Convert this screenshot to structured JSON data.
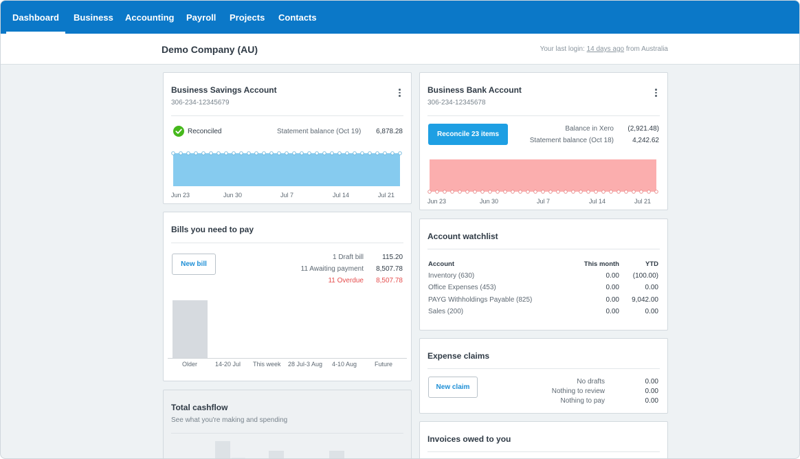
{
  "nav": {
    "items": [
      {
        "label": "Dashboard",
        "active": true
      },
      {
        "label": "Business"
      },
      {
        "label": "Accounting"
      },
      {
        "label": "Payroll"
      },
      {
        "label": "Projects"
      },
      {
        "label": "Contacts"
      }
    ]
  },
  "header": {
    "company": "Demo Company (AU)",
    "last_login_prefix": "Your last login: ",
    "last_login_link": "14 days ago",
    "last_login_suffix": " from Australia"
  },
  "savings": {
    "title": "Business Savings Account",
    "number": "306-234-12345679",
    "status": "Reconciled",
    "statement_label": "Statement balance (Oct 19)",
    "statement_value": "6,878.28",
    "x_labels": [
      "Jun 23",
      "Jun 30",
      "Jul 7",
      "Jul 14",
      "Jul 21"
    ],
    "fill_color": "#86cbef"
  },
  "bank": {
    "title": "Business Bank Account",
    "number": "306-234-12345678",
    "reconcile_button": "Reconcile 23 items",
    "balance_xero_label": "Balance in Xero",
    "balance_xero_value": "(2,921.48)",
    "statement_label": "Statement balance (Oct 18)",
    "statement_value": "4,242.62",
    "x_labels": [
      "Jun 23",
      "Jun 30",
      "Jul 7",
      "Jul 14",
      "Jul 21"
    ],
    "fill_color": "#fbaeae"
  },
  "bills": {
    "title": "Bills you need to pay",
    "new_button": "New bill",
    "rows": [
      {
        "label": "1 Draft bill",
        "value": "115.20",
        "overdue": false
      },
      {
        "label": "11 Awaiting payment",
        "value": "8,507.78",
        "overdue": false
      },
      {
        "label": "11 Overdue",
        "value": "8,507.78",
        "overdue": true
      }
    ],
    "categories": [
      "Older",
      "14-20 Jul",
      "This week",
      "28 Jul-3 Aug",
      "4-10 Aug",
      "Future"
    ]
  },
  "watchlist": {
    "title": "Account watchlist",
    "columns": [
      "Account",
      "This month",
      "YTD"
    ],
    "rows": [
      {
        "account": "Inventory (630)",
        "month": "0.00",
        "ytd": "(100.00)"
      },
      {
        "account": "Office Expenses (453)",
        "month": "0.00",
        "ytd": "0.00"
      },
      {
        "account": "PAYG Withholdings Payable (825)",
        "month": "0.00",
        "ytd": "9,042.00"
      },
      {
        "account": "Sales (200)",
        "month": "0.00",
        "ytd": "0.00"
      }
    ]
  },
  "expense": {
    "title": "Expense claims",
    "new_button": "New claim",
    "rows": [
      {
        "label": "No drafts",
        "value": "0.00"
      },
      {
        "label": "Nothing to review",
        "value": "0.00"
      },
      {
        "label": "Nothing to pay",
        "value": "0.00"
      }
    ]
  },
  "cashflow": {
    "title": "Total cashflow",
    "subtitle": "See what you're making and spending"
  },
  "invoices": {
    "title": "Invoices owed to you"
  }
}
